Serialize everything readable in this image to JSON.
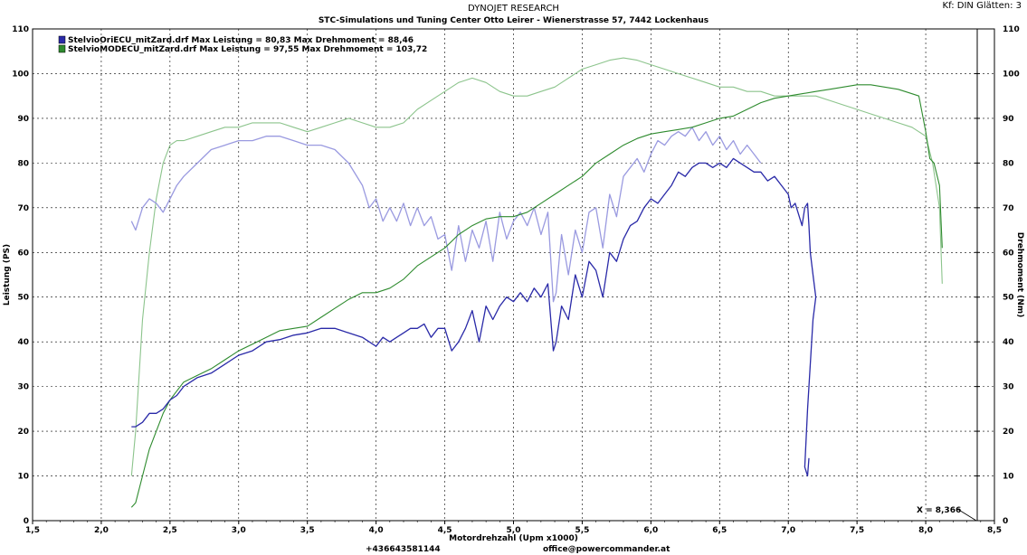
{
  "header": {
    "title": "DYNOJET RESEARCH",
    "subtitle": "STC-Simulations und Tuning Center Otto Leirer - Wienerstrasse 57, 7442 Lockenhaus",
    "settings": "Kf: DIN  Glätten: 3"
  },
  "footer": {
    "phone": "+436643581144",
    "email": "office@powercommander.at"
  },
  "cursor_readout": "X = 8,366",
  "chart_data": {
    "type": "line",
    "xlabel": "Motordrehzahl (Upm x1000)",
    "ylabel_left": "Leistung (PS)",
    "ylabel_right": "Drehmoment (Nm)",
    "xlim": [
      1.5,
      8.5
    ],
    "ylim": [
      0,
      110
    ],
    "x_ticks": [
      "1,5",
      "2,0",
      "2,5",
      "3,0",
      "3,5",
      "4,0",
      "4,5",
      "5,0",
      "5,5",
      "6,0",
      "6,5",
      "7,0",
      "7,5",
      "8,0",
      "8,5"
    ],
    "y_ticks": [
      "0",
      "10",
      "20",
      "30",
      "40",
      "50",
      "60",
      "70",
      "80",
      "90",
      "100",
      "110"
    ],
    "grid": true,
    "legend_position": "top-left",
    "legend": [
      {
        "text": "StelvioOriECU_mitZard.drf Max Leistung = 80,83     Max Drehmoment = 88,46",
        "color": "#2a2aa8"
      },
      {
        "text": "StelvioMODECU_mitZard.drf Max Leistung = 97,55     Max Drehmoment = 103,72",
        "color": "#2e8b2e"
      }
    ],
    "series": [
      {
        "name": "StelvioMODECU_mitZard.drf Max Drehmoment = 103,72",
        "color": "#8cc48c",
        "x": [
          2.22,
          2.25,
          2.3,
          2.35,
          2.4,
          2.45,
          2.5,
          2.55,
          2.6,
          2.7,
          2.8,
          2.9,
          3.0,
          3.1,
          3.2,
          3.3,
          3.4,
          3.5,
          3.6,
          3.7,
          3.8,
          3.9,
          4.0,
          4.1,
          4.2,
          4.3,
          4.4,
          4.5,
          4.6,
          4.7,
          4.8,
          4.9,
          5.0,
          5.1,
          5.2,
          5.3,
          5.4,
          5.5,
          5.6,
          5.7,
          5.8,
          5.9,
          6.0,
          6.1,
          6.2,
          6.3,
          6.4,
          6.5,
          6.6,
          6.7,
          6.8,
          6.9,
          7.0,
          7.1,
          7.2,
          7.3,
          7.4,
          7.5,
          7.6,
          7.7,
          7.8,
          7.9,
          8.0,
          8.05,
          8.1,
          8.12
        ],
        "y": [
          10,
          20,
          45,
          60,
          72,
          80,
          84,
          85,
          85,
          86,
          87,
          88,
          88,
          89,
          89,
          89,
          88,
          87,
          88,
          89,
          90,
          89,
          88,
          88,
          89,
          92,
          94,
          96,
          98,
          99,
          98,
          96,
          95,
          95,
          96,
          97,
          99,
          101,
          102,
          103,
          103.5,
          103,
          102,
          101,
          100,
          99,
          98,
          97,
          97,
          96,
          96,
          95,
          95,
          95,
          95,
          94,
          93,
          92,
          91,
          90,
          89,
          88,
          86,
          80,
          70,
          53
        ]
      },
      {
        "name": "StelvioOriECU_mitZard.drf Max Drehmoment = 88,46",
        "color": "#9a9ae0",
        "x": [
          2.22,
          2.25,
          2.3,
          2.35,
          2.4,
          2.45,
          2.5,
          2.55,
          2.6,
          2.7,
          2.8,
          2.9,
          3.0,
          3.1,
          3.2,
          3.3,
          3.4,
          3.5,
          3.6,
          3.7,
          3.8,
          3.9,
          3.95,
          4.0,
          4.05,
          4.1,
          4.15,
          4.2,
          4.25,
          4.3,
          4.35,
          4.4,
          4.45,
          4.5,
          4.55,
          4.6,
          4.65,
          4.7,
          4.75,
          4.8,
          4.85,
          4.9,
          4.95,
          5.0,
          5.05,
          5.1,
          5.15,
          5.2,
          5.25,
          5.29,
          5.31,
          5.35,
          5.4,
          5.45,
          5.5,
          5.55,
          5.6,
          5.65,
          5.7,
          5.75,
          5.8,
          5.85,
          5.9,
          5.95,
          6.0,
          6.05,
          6.1,
          6.15,
          6.2,
          6.25,
          6.3,
          6.35,
          6.4,
          6.45,
          6.5,
          6.55,
          6.6,
          6.65,
          6.7,
          6.75,
          6.8
        ],
        "y": [
          67,
          65,
          70,
          72,
          71,
          69,
          72,
          75,
          77,
          80,
          83,
          84,
          85,
          85,
          86,
          86,
          85,
          84,
          84,
          83,
          80,
          75,
          70,
          72,
          67,
          70,
          67,
          71,
          66,
          70,
          66,
          68,
          63,
          64,
          56,
          66,
          58,
          65,
          61,
          67,
          58,
          69,
          63,
          67,
          69,
          66,
          70,
          64,
          69,
          49,
          51,
          64,
          55,
          65,
          60,
          69,
          70,
          61,
          73,
          68,
          77,
          79,
          81,
          78,
          82,
          85,
          84,
          86,
          87,
          86,
          88,
          85,
          87,
          84,
          86,
          83,
          85,
          82,
          84,
          82,
          80
        ]
      },
      {
        "name": "StelvioMODECU_mitZard.drf Max Leistung = 97,55",
        "color": "#2e8b2e",
        "x": [
          2.22,
          2.25,
          2.3,
          2.35,
          2.4,
          2.45,
          2.5,
          2.55,
          2.6,
          2.7,
          2.8,
          2.9,
          3.0,
          3.1,
          3.2,
          3.3,
          3.4,
          3.5,
          3.6,
          3.7,
          3.8,
          3.9,
          4.0,
          4.1,
          4.2,
          4.3,
          4.4,
          4.5,
          4.6,
          4.7,
          4.8,
          4.9,
          5.0,
          5.1,
          5.2,
          5.3,
          5.4,
          5.5,
          5.6,
          5.7,
          5.8,
          5.9,
          6.0,
          6.1,
          6.2,
          6.3,
          6.4,
          6.5,
          6.6,
          6.7,
          6.8,
          6.9,
          7.0,
          7.1,
          7.2,
          7.3,
          7.4,
          7.5,
          7.6,
          7.7,
          7.8,
          7.9,
          7.95,
          8.0,
          8.03,
          8.06,
          8.1,
          8.12
        ],
        "y": [
          3,
          4,
          10,
          16,
          20,
          24,
          27,
          29,
          31,
          32.5,
          34,
          36,
          38,
          39.5,
          41,
          42.5,
          43,
          43.5,
          45.5,
          47.5,
          49.5,
          51,
          51,
          52,
          54,
          57,
          59,
          61,
          64,
          66,
          67.5,
          68,
          68,
          69,
          71,
          73,
          75,
          77,
          80,
          82,
          84,
          85.5,
          86.5,
          87,
          87.5,
          88,
          89,
          90,
          90.5,
          92,
          93.5,
          94.5,
          95,
          95.5,
          96,
          96.5,
          97,
          97.5,
          97.5,
          97,
          96.5,
          95.5,
          95,
          87,
          81,
          80,
          75,
          61
        ]
      },
      {
        "name": "StelvioOriECU_mitZard.drf Max Leistung = 80,83",
        "color": "#2a2aa8",
        "x": [
          2.22,
          2.25,
          2.3,
          2.35,
          2.4,
          2.45,
          2.5,
          2.55,
          2.6,
          2.7,
          2.8,
          2.9,
          3.0,
          3.1,
          3.2,
          3.3,
          3.4,
          3.5,
          3.6,
          3.7,
          3.8,
          3.9,
          3.95,
          4.0,
          4.05,
          4.1,
          4.15,
          4.2,
          4.25,
          4.3,
          4.35,
          4.4,
          4.45,
          4.5,
          4.55,
          4.6,
          4.65,
          4.7,
          4.75,
          4.8,
          4.85,
          4.9,
          4.95,
          5.0,
          5.05,
          5.1,
          5.15,
          5.2,
          5.25,
          5.29,
          5.31,
          5.35,
          5.4,
          5.45,
          5.5,
          5.55,
          5.6,
          5.65,
          5.7,
          5.75,
          5.8,
          5.85,
          5.9,
          5.95,
          6.0,
          6.05,
          6.1,
          6.15,
          6.2,
          6.25,
          6.3,
          6.35,
          6.4,
          6.45,
          6.5,
          6.55,
          6.6,
          6.65,
          6.7,
          6.75,
          6.8,
          6.85,
          6.9,
          6.95,
          7.0,
          7.02,
          7.05,
          7.1,
          7.12,
          7.14,
          7.15,
          7.16,
          7.18,
          7.2,
          7.18,
          7.16,
          7.14,
          7.12,
          7.14,
          7.15
        ],
        "y": [
          21,
          21,
          22,
          24,
          24,
          25,
          27,
          28,
          30,
          32,
          33,
          35,
          37,
          38,
          40,
          40.5,
          41.5,
          42,
          43,
          43,
          42,
          41,
          40,
          39,
          41,
          40,
          41,
          42,
          43,
          43,
          44,
          41,
          43,
          43,
          38,
          40,
          43,
          47,
          40,
          48,
          45,
          48,
          50,
          49,
          51,
          49,
          52,
          50,
          53,
          38,
          40,
          48,
          45,
          55,
          50,
          58,
          56,
          50,
          60,
          58,
          63,
          66,
          67,
          70,
          72,
          71,
          73,
          75,
          78,
          77,
          79,
          80,
          80,
          79,
          80,
          79,
          81,
          80,
          79,
          78,
          78,
          76,
          77,
          75,
          73,
          70,
          71,
          66,
          70,
          71,
          66,
          60,
          55,
          50,
          45,
          35,
          25,
          12,
          10,
          14
        ]
      }
    ]
  }
}
